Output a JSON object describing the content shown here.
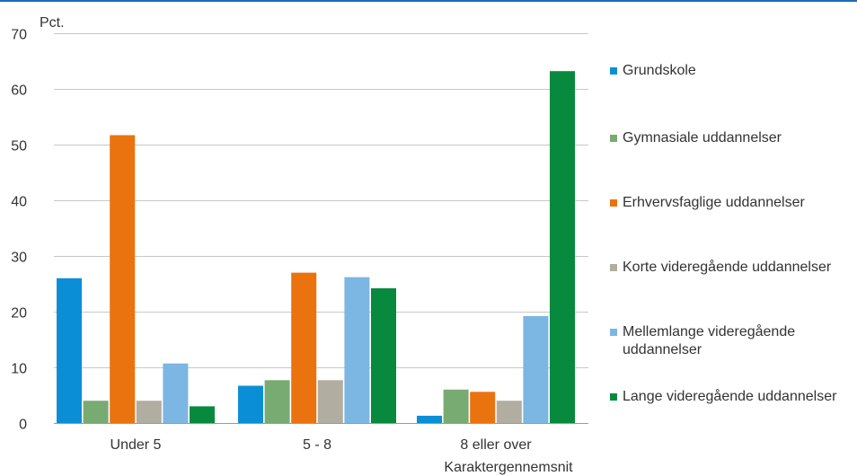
{
  "chart_data": {
    "type": "bar",
    "ylabel": "Pct.",
    "xlabel": "Karaktergennemsnit",
    "ylim": [
      0,
      70
    ],
    "yticks": [
      0,
      10,
      20,
      30,
      40,
      50,
      60,
      70
    ],
    "grid": true,
    "legend_position": "right",
    "categories": [
      "Under 5",
      "5 - 8",
      "8 eller over"
    ],
    "series": [
      {
        "name": "Grundskole",
        "color": "#0a8fd6",
        "values": [
          26,
          6.7,
          1.3
        ]
      },
      {
        "name": "Gymnasiale uddannelser",
        "color": "#78ab72",
        "values": [
          4,
          7.7,
          6
        ]
      },
      {
        "name": "Erhvervsfaglige uddannelser",
        "color": "#ea730f",
        "values": [
          51.7,
          27,
          5.6
        ]
      },
      {
        "name": "Korte videregående uddannelser",
        "color": "#b1ada0",
        "values": [
          4,
          7.7,
          4
        ]
      },
      {
        "name": "Mellemlange videregående uddannelser",
        "color": "#7cb6e2",
        "values": [
          10.7,
          26.2,
          19.2
        ]
      },
      {
        "name": "Lange videregående uddannelser",
        "color": "#078a3e",
        "values": [
          3,
          24.2,
          63.2
        ]
      }
    ]
  }
}
